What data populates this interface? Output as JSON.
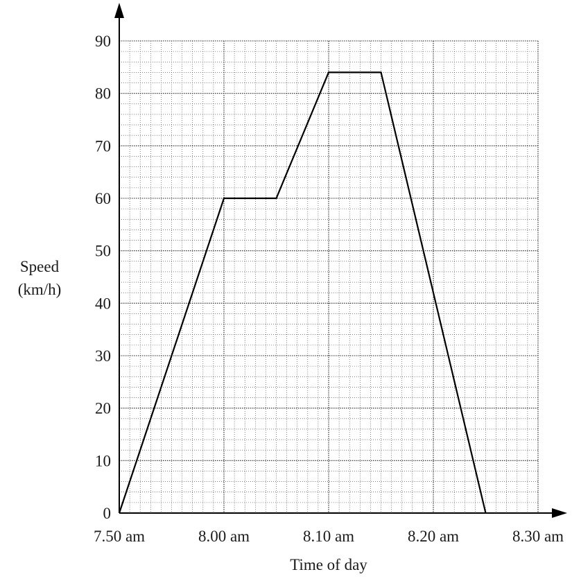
{
  "chart_data": {
    "type": "line",
    "title": "",
    "xlabel": "Time of day",
    "ylabel_lines": [
      "Speed",
      "(km/h)"
    ],
    "x_unit": "minutes after 7.50 am",
    "x_tick_labels": [
      "7.50 am",
      "8.00 am",
      "8.10 am",
      "8.20 am",
      "8.30 am"
    ],
    "x_tick_minutes": [
      0,
      10,
      20,
      30,
      40
    ],
    "y_ticks": [
      0,
      10,
      20,
      30,
      40,
      50,
      60,
      70,
      80,
      90
    ],
    "xlim": [
      0,
      40
    ],
    "ylim": [
      0,
      90
    ],
    "grid": true,
    "series": [
      {
        "x": [
          0,
          10,
          15,
          20,
          25,
          35
        ],
        "y": [
          0,
          60,
          60,
          84,
          84,
          0
        ]
      }
    ]
  }
}
